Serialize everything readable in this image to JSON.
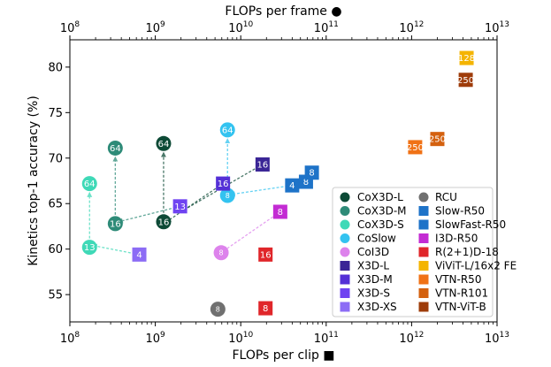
{
  "chart_data": {
    "type": "scatter",
    "xlabel": "FLOPs per clip ■",
    "x2label": "FLOPs per frame ●",
    "ylabel": "Kinetics top-1 accuracy (%)",
    "xscale": "log",
    "xlim": [
      100000000,
      10000000000000
    ],
    "ylim": [
      52,
      83
    ],
    "xtick_values": [
      100000000,
      1000000000,
      10000000000,
      100000000000,
      1000000000000,
      10000000000000
    ],
    "xtick_bases": [
      "10",
      "10",
      "10",
      "10",
      "10",
      "10"
    ],
    "xtick_exps": [
      "8",
      "9",
      "10",
      "11",
      "12",
      "13"
    ],
    "ytick_values": [
      55,
      60,
      65,
      70,
      75,
      80
    ],
    "ytick_labels": [
      "55",
      "60",
      "65",
      "70",
      "75",
      "80"
    ],
    "legend_position": "lower-right",
    "points": [
      {
        "series": "CoX3D-L",
        "marker": "circle",
        "x": 1250000000,
        "y": 71.6,
        "label": "64",
        "color": "#0d4a36"
      },
      {
        "series": "CoX3D-L",
        "marker": "circle",
        "x": 1250000000,
        "y": 63.0,
        "label": "16",
        "color": "#0d4a36"
      },
      {
        "series": "CoX3D-M",
        "marker": "circle",
        "x": 340000000,
        "y": 71.1,
        "label": "64",
        "color": "#2e8b78"
      },
      {
        "series": "CoX3D-M",
        "marker": "circle",
        "x": 340000000,
        "y": 62.8,
        "label": "16",
        "color": "#2e8b78"
      },
      {
        "series": "CoX3D-S",
        "marker": "circle",
        "x": 170000000,
        "y": 67.2,
        "label": "64",
        "color": "#3fd9b7"
      },
      {
        "series": "CoX3D-S",
        "marker": "circle",
        "x": 170000000,
        "y": 60.2,
        "label": "13",
        "color": "#3fd9b7"
      },
      {
        "series": "CoSlow",
        "marker": "circle",
        "x": 7000000000,
        "y": 73.1,
        "label": "64",
        "color": "#33c3f0"
      },
      {
        "series": "CoSlow",
        "marker": "circle",
        "x": 7000000000,
        "y": 65.9,
        "label": "8",
        "color": "#33c3f0"
      },
      {
        "series": "CoI3D",
        "marker": "circle",
        "x": 5900000000,
        "y": 59.6,
        "label": "8",
        "color": "#dd83ec"
      },
      {
        "series": "RCU",
        "marker": "circle",
        "x": 5400000000,
        "y": 53.4,
        "label": "8",
        "color": "#707070"
      },
      {
        "series": "X3D-L",
        "marker": "square",
        "x": 18000000000,
        "y": 69.3,
        "label": "16",
        "color": "#3a2596"
      },
      {
        "series": "X3D-M",
        "marker": "square",
        "x": 6200000000,
        "y": 67.2,
        "label": "16",
        "color": "#5430d6"
      },
      {
        "series": "X3D-S",
        "marker": "square",
        "x": 1950000000,
        "y": 64.7,
        "label": "13",
        "color": "#6f43f1"
      },
      {
        "series": "X3D-XS",
        "marker": "square",
        "x": 650000000,
        "y": 59.4,
        "label": "4",
        "color": "#8c6cf5"
      },
      {
        "series": "Slow-R50",
        "marker": "square",
        "x": 40000000000,
        "y": 67.0,
        "label": "4",
        "color": "#1e73c8"
      },
      {
        "series": "Slow-R50",
        "marker": "square",
        "x": 58000000000,
        "y": 67.4,
        "label": "8",
        "color": "#1e73c8"
      },
      {
        "series": "SlowFast-R50",
        "marker": "square",
        "x": 68000000000,
        "y": 68.4,
        "label": "8",
        "color": "#1e73c8"
      },
      {
        "series": "I3D-R50",
        "marker": "square",
        "x": 29000000000,
        "y": 64.1,
        "label": "8",
        "color": "#c32bd3"
      },
      {
        "series": "R(2+1)D-18",
        "marker": "square",
        "x": 19500000000,
        "y": 59.4,
        "label": "16",
        "color": "#e0262a"
      },
      {
        "series": "R(2+1)D-18",
        "marker": "square",
        "x": 19500000000,
        "y": 53.5,
        "label": "8",
        "color": "#e0262a"
      },
      {
        "series": "ViViT-L/16x2 FE",
        "marker": "square",
        "x": 4400000000000,
        "y": 81.0,
        "label": "128",
        "color": "#f4b400"
      },
      {
        "series": "VTN-R50",
        "marker": "square",
        "x": 1100000000000,
        "y": 71.2,
        "label": "250",
        "color": "#f07216"
      },
      {
        "series": "VTN-R101",
        "marker": "square",
        "x": 2000000000000,
        "y": 72.1,
        "label": "250",
        "color": "#d4610f"
      },
      {
        "series": "VTN-ViT-B",
        "marker": "square",
        "x": 4300000000000,
        "y": 78.6,
        "label": "250",
        "color": "#9e3c0a"
      }
    ],
    "arrows": [
      {
        "from": [
          1250000000,
          63.0
        ],
        "to": [
          1250000000,
          70.6
        ],
        "color": "#0d4a36"
      },
      {
        "from": [
          340000000,
          62.8
        ],
        "to": [
          340000000,
          70.1
        ],
        "color": "#2e8b78"
      },
      {
        "from": [
          170000000,
          60.2
        ],
        "to": [
          170000000,
          66.2
        ],
        "color": "#3fd9b7"
      },
      {
        "from": [
          7000000000,
          65.9
        ],
        "to": [
          7000000000,
          72.1
        ],
        "color": "#33c3f0"
      },
      {
        "from": [
          6200000000,
          67.2
        ],
        "to": [
          1350000000,
          63.0
        ],
        "color": "#0d4a36"
      },
      {
        "from": [
          1950000000,
          64.7
        ],
        "to": [
          370000000,
          63.0
        ],
        "color": "#2e8b78"
      },
      {
        "from": [
          650000000,
          59.4
        ],
        "to": [
          185000000,
          60.4
        ],
        "color": "#3fd9b7"
      },
      {
        "from": [
          40000000000,
          67.0
        ],
        "to": [
          7600000000,
          66.0
        ],
        "color": "#33c3f0"
      },
      {
        "from": [
          29000000000,
          64.1
        ],
        "to": [
          6300000000,
          59.8
        ],
        "color": "#dd83ec"
      },
      {
        "from": [
          18000000000,
          69.3
        ],
        "to": [
          1900000000,
          64.0
        ],
        "color": "#0d4a36"
      }
    ],
    "legend": {
      "col1": [
        {
          "name": "CoX3D-L",
          "marker": "circle",
          "color": "#0d4a36"
        },
        {
          "name": "CoX3D-M",
          "marker": "circle",
          "color": "#2e8b78"
        },
        {
          "name": "CoX3D-S",
          "marker": "circle",
          "color": "#3fd9b7"
        },
        {
          "name": "CoSlow",
          "marker": "circle",
          "color": "#33c3f0"
        },
        {
          "name": "CoI3D",
          "marker": "circle",
          "color": "#dd83ec"
        },
        {
          "name": "X3D-L",
          "marker": "square",
          "color": "#3a2596"
        },
        {
          "name": "X3D-M",
          "marker": "square",
          "color": "#5430d6"
        },
        {
          "name": "X3D-S",
          "marker": "square",
          "color": "#6f43f1"
        },
        {
          "name": "X3D-XS",
          "marker": "square",
          "color": "#8c6cf5"
        }
      ],
      "col2": [
        {
          "name": "RCU",
          "marker": "circle",
          "color": "#707070"
        },
        {
          "name": "Slow-R50",
          "marker": "square",
          "color": "#1e73c8"
        },
        {
          "name": "SlowFast-R50",
          "marker": "square",
          "color": "#1e73c8"
        },
        {
          "name": "I3D-R50",
          "marker": "square",
          "color": "#c32bd3"
        },
        {
          "name": "R(2+1)D-18",
          "marker": "square",
          "color": "#e0262a"
        },
        {
          "name": "ViViT-L/16x2 FE",
          "marker": "square",
          "color": "#f4b400"
        },
        {
          "name": "VTN-R50",
          "marker": "square",
          "color": "#f07216"
        },
        {
          "name": "VTN-R101",
          "marker": "square",
          "color": "#d4610f"
        },
        {
          "name": "VTN-ViT-B",
          "marker": "square",
          "color": "#9e3c0a"
        }
      ]
    }
  }
}
